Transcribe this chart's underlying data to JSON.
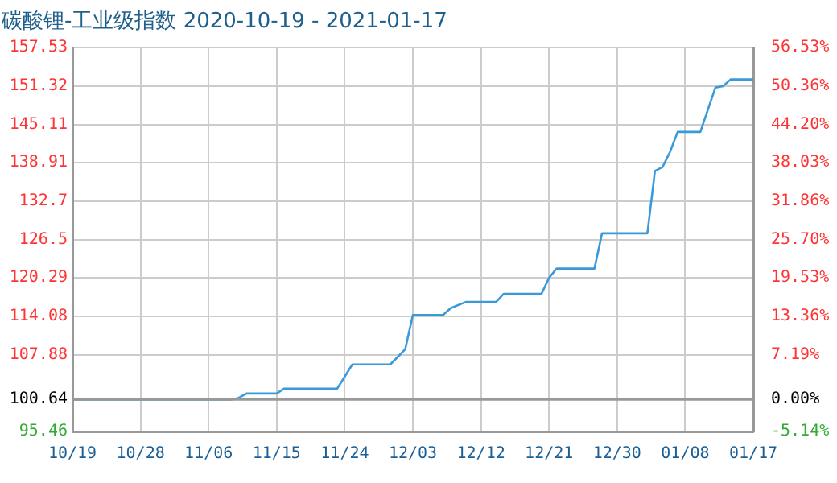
{
  "chart_data": {
    "type": "line",
    "title": "碳酸锂-工业级指数 2020-10-19 - 2021-01-17",
    "x": [
      "2020-10-19",
      "2020-11-09",
      "2020-11-10",
      "2020-11-11",
      "2020-11-15",
      "2020-11-16",
      "2020-11-23",
      "2020-11-25",
      "2020-11-30",
      "2020-12-01",
      "2020-12-02",
      "2020-12-03",
      "2020-12-07",
      "2020-12-08",
      "2020-12-10",
      "2020-12-14",
      "2020-12-15",
      "2020-12-20",
      "2020-12-21",
      "2020-12-22",
      "2020-12-27",
      "2020-12-28",
      "2021-01-03",
      "2021-01-04",
      "2021-01-05",
      "2021-01-06",
      "2021-01-07",
      "2021-01-10",
      "2021-01-12",
      "2021-01-13",
      "2021-01-14",
      "2021-01-17"
    ],
    "series": [
      {
        "color": "#3a9ad9",
        "values": [
          100.6,
          100.6,
          100.9,
          101.6,
          101.6,
          102.4,
          102.4,
          106.3,
          106.3,
          107.5,
          108.8,
          114.3,
          114.3,
          115.4,
          116.4,
          116.4,
          117.7,
          117.7,
          120.3,
          121.8,
          121.8,
          127.5,
          127.5,
          137.6,
          138.2,
          140.7,
          143.9,
          143.9,
          151.1,
          151.3,
          152.4,
          152.4
        ]
      }
    ],
    "xlim": [
      "2020-10-19",
      "2021-01-17"
    ],
    "xticks": [
      {
        "value": "2020-10-19",
        "label": "10/19"
      },
      {
        "value": "2020-10-28",
        "label": "10/28"
      },
      {
        "value": "2020-11-06",
        "label": "11/06"
      },
      {
        "value": "2020-11-15",
        "label": "11/15"
      },
      {
        "value": "2020-11-24",
        "label": "11/24"
      },
      {
        "value": "2020-12-03",
        "label": "12/03"
      },
      {
        "value": "2020-12-12",
        "label": "12/12"
      },
      {
        "value": "2020-12-21",
        "label": "12/21"
      },
      {
        "value": "2020-12-30",
        "label": "12/30"
      },
      {
        "value": "2021-01-08",
        "label": "01/08"
      },
      {
        "value": "2021-01-17",
        "label": "01/17"
      }
    ],
    "ylim": [
      95.46,
      157.53
    ],
    "yticks": [
      95.46,
      100.64,
      107.88,
      114.08,
      120.29,
      126.5,
      132.7,
      138.91,
      145.11,
      151.32,
      157.53
    ],
    "y2lim": [
      -5.14,
      56.53
    ],
    "y2ticks": [
      {
        "value": -5.14,
        "label": "-5.14%"
      },
      {
        "value": 0,
        "label": "0.00%"
      },
      {
        "value": 7.19,
        "label": "7.19%"
      },
      {
        "value": 13.36,
        "label": "13.36%"
      },
      {
        "value": 19.53,
        "label": "19.53%"
      },
      {
        "value": 25.7,
        "label": "25.70%"
      },
      {
        "value": 31.86,
        "label": "31.86%"
      },
      {
        "value": 38.03,
        "label": "38.03%"
      },
      {
        "value": 44.2,
        "label": "44.20%"
      },
      {
        "value": 50.36,
        "label": "50.36%"
      },
      {
        "value": 56.53,
        "label": "56.53%"
      }
    ],
    "ref_lines": [
      {
        "axis": "y",
        "value": 100.64,
        "color": "#999999"
      }
    ],
    "grid": true,
    "legend": false,
    "marker": "none",
    "line_style": "solid"
  }
}
